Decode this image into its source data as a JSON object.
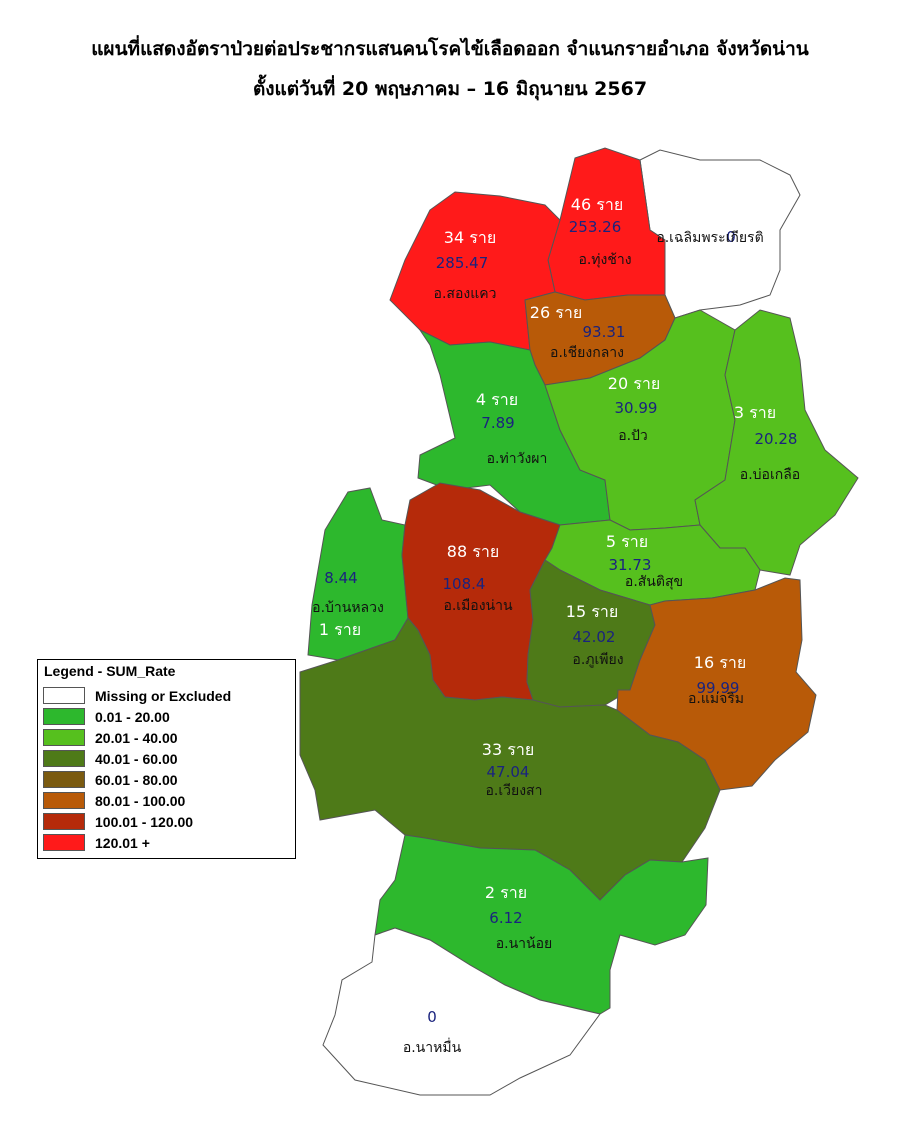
{
  "header": {
    "title_line1": "แผนที่แสดงอัตราป่วยต่อประชากรแสนคนโรคไข้เลือดออก จำแนกรายอำเภอ จังหวัดน่าน",
    "title_line2": "ตั้งแต่วันที่ 20 พฤษภาคม – 16 มิถุนายน 2567"
  },
  "legend": {
    "title": "Legend - SUM_Rate",
    "items": [
      {
        "label": "Missing or Excluded",
        "color": "#ffffff"
      },
      {
        "label": "0.01 - 20.00",
        "color": "#2db82d"
      },
      {
        "label": "20.01 - 40.00",
        "color": "#56c01e"
      },
      {
        "label": "40.01 - 60.00",
        "color": "#4e7a18"
      },
      {
        "label": "60.01 - 80.00",
        "color": "#7a5a10"
      },
      {
        "label": "80.01 - 100.00",
        "color": "#b85a08"
      },
      {
        "label": "100.01 - 120.00",
        "color": "#b52a0a"
      },
      {
        "label": "120.01 +",
        "color": "#ff1a1a"
      }
    ]
  },
  "districts": [
    {
      "id": "chaloem-phra-kiat",
      "name": "อ.เฉลิมพระเกียรติ",
      "cases": "",
      "rate": "0",
      "color": "#ffffff"
    },
    {
      "id": "thung-chang",
      "name": "อ.ทุ่งช้าง",
      "cases": "46 ราย",
      "rate": "253.26",
      "color": "#ff1a1a"
    },
    {
      "id": "song-khwae",
      "name": "อ.สองแคว",
      "cases": "34 ราย",
      "rate": "285.47",
      "color": "#ff1a1a"
    },
    {
      "id": "chiang-klang",
      "name": "อ.เชียงกลาง",
      "cases": "26 ราย",
      "rate": "93.31",
      "color": "#b85a08"
    },
    {
      "id": "tha-wang-pha",
      "name": "อ.ท่าวังผา",
      "cases": "4 ราย",
      "rate": "7.89",
      "color": "#2db82d"
    },
    {
      "id": "pua",
      "name": "อ.ปัว",
      "cases": "20 ราย",
      "rate": "30.99",
      "color": "#56c01e"
    },
    {
      "id": "bo-kluea",
      "name": "อ.บ่อเกลือ",
      "cases": "3 ราย",
      "rate": "20.28",
      "color": "#56c01e"
    },
    {
      "id": "ban-luang",
      "name": "อ.บ้านหลวง",
      "cases": "1 ราย",
      "rate": "8.44",
      "color": "#2db82d"
    },
    {
      "id": "mueang-nan",
      "name": "อ.เมืองน่าน",
      "cases": "88 ราย",
      "rate": "108.4",
      "color": "#b52a0a"
    },
    {
      "id": "santi-suk",
      "name": "อ.สันติสุข",
      "cases": "5 ราย",
      "rate": "31.73",
      "color": "#56c01e"
    },
    {
      "id": "phu-phiang",
      "name": "อ.ภูเพียง",
      "cases": "15 ราย",
      "rate": "42.02",
      "color": "#4e7a18"
    },
    {
      "id": "mae-charim",
      "name": "อ.แม่จริม",
      "cases": "16 ราย",
      "rate": "99.99",
      "color": "#b85a08"
    },
    {
      "id": "wiang-sa",
      "name": "อ.เวียงสา",
      "cases": "33 ราย",
      "rate": "47.04",
      "color": "#4e7a18"
    },
    {
      "id": "na-noi",
      "name": "อ.นาน้อย",
      "cases": "2 ราย",
      "rate": "6.12",
      "color": "#2db82d"
    },
    {
      "id": "na-muen",
      "name": "อ.นาหมื่น",
      "cases": "",
      "rate": "0",
      "color": "#ffffff"
    }
  ]
}
